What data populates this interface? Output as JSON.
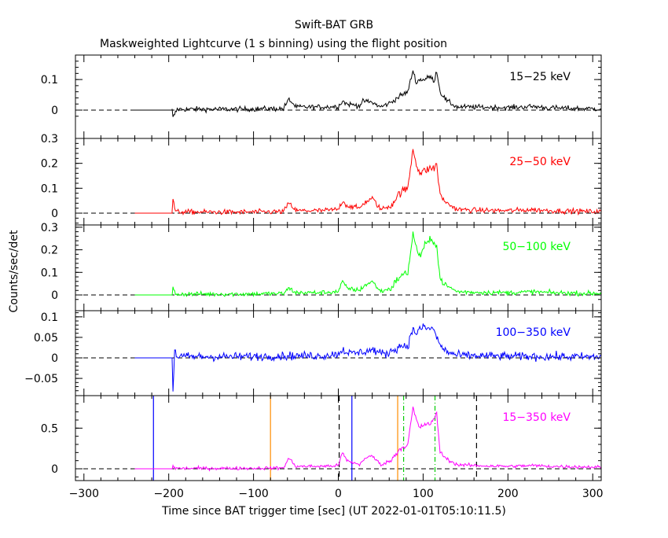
{
  "chart_data": {
    "type": "line",
    "title": "Swift-BAT GRB",
    "subtitle": "Maskweighted Lightcurve (1 s binning) using the flight position",
    "xlabel": "Time since BAT trigger time [sec] (UT 2022-01-01T05:10:11.5)",
    "ylabel": "Counts/sec/det",
    "xlim": [
      -310,
      310
    ],
    "xticks": [
      -300,
      -200,
      -100,
      0,
      100,
      200,
      300
    ],
    "grid": false,
    "panels": [
      {
        "name": "15−25 keV",
        "color": "#000000",
        "ylim": [
          -0.03,
          0.18
        ],
        "yticks": [
          0,
          0.1
        ],
        "ytick_labels": [
          "0",
          "0.1"
        ],
        "noise": 0.009,
        "spike_scale": 1.0,
        "bg_start": -240,
        "points": [
          [
            -196,
            0
          ],
          [
            -195,
            -0.025
          ],
          [
            -190,
            0.003
          ],
          [
            -120,
            0.003
          ],
          [
            -65,
            0.005
          ],
          [
            -58,
            0.035
          ],
          [
            -50,
            0.01
          ],
          [
            -20,
            0.01
          ],
          [
            0,
            0.012
          ],
          [
            5,
            0.03
          ],
          [
            10,
            0.02
          ],
          [
            25,
            0.015
          ],
          [
            30,
            0.03
          ],
          [
            40,
            0.025
          ],
          [
            50,
            0.01
          ],
          [
            62,
            0.025
          ],
          [
            72,
            0.045
          ],
          [
            82,
            0.06
          ],
          [
            88,
            0.13
          ],
          [
            92,
            0.09
          ],
          [
            96,
            0.1
          ],
          [
            102,
            0.1
          ],
          [
            108,
            0.11
          ],
          [
            113,
            0.095
          ],
          [
            116,
            0.13
          ],
          [
            120,
            0.06
          ],
          [
            128,
            0.03
          ],
          [
            140,
            0.01
          ],
          [
            160,
            0.01
          ],
          [
            200,
            0.008
          ],
          [
            230,
            0.012
          ],
          [
            250,
            0.007
          ],
          [
            310,
            0.004
          ]
        ]
      },
      {
        "name": "25−50 keV",
        "color": "#ff0000",
        "ylim": [
          -0.04,
          0.3
        ],
        "yticks": [
          0,
          0.1,
          0.2,
          0.3
        ],
        "ytick_labels": [
          "0",
          "0.1",
          "0.2",
          "0.3"
        ],
        "noise": 0.011,
        "spike_scale": 1.6,
        "bg_start": -240,
        "points": [
          [
            -196,
            0
          ],
          [
            -195,
            0.06
          ],
          [
            -192,
            0.005
          ],
          [
            -120,
            0.004
          ],
          [
            -65,
            0.006
          ],
          [
            -58,
            0.04
          ],
          [
            -50,
            0.01
          ],
          [
            -20,
            0.01
          ],
          [
            0,
            0.015
          ],
          [
            5,
            0.05
          ],
          [
            10,
            0.03
          ],
          [
            25,
            0.02
          ],
          [
            30,
            0.04
          ],
          [
            40,
            0.06
          ],
          [
            50,
            0.015
          ],
          [
            62,
            0.03
          ],
          [
            72,
            0.08
          ],
          [
            82,
            0.1
          ],
          [
            88,
            0.26
          ],
          [
            92,
            0.2
          ],
          [
            96,
            0.16
          ],
          [
            102,
            0.17
          ],
          [
            108,
            0.18
          ],
          [
            113,
            0.18
          ],
          [
            116,
            0.2
          ],
          [
            120,
            0.07
          ],
          [
            128,
            0.04
          ],
          [
            140,
            0.015
          ],
          [
            160,
            0.012
          ],
          [
            200,
            0.01
          ],
          [
            230,
            0.014
          ],
          [
            250,
            0.01
          ],
          [
            310,
            0.006
          ]
        ]
      },
      {
        "name": "50−100 keV",
        "color": "#00ff00",
        "ylim": [
          -0.03,
          0.31
        ],
        "yticks": [
          0,
          0.1,
          0.2,
          0.3
        ],
        "ytick_labels": [
          "0",
          "0.1",
          "0.2",
          "0.3"
        ],
        "noise": 0.011,
        "spike_scale": 1.6,
        "bg_start": -240,
        "points": [
          [
            -196,
            0
          ],
          [
            -195,
            0.03
          ],
          [
            -192,
            0.004
          ],
          [
            -120,
            0.004
          ],
          [
            -65,
            0.006
          ],
          [
            -58,
            0.03
          ],
          [
            -50,
            0.01
          ],
          [
            -20,
            0.01
          ],
          [
            0,
            0.015
          ],
          [
            5,
            0.06
          ],
          [
            10,
            0.03
          ],
          [
            25,
            0.02
          ],
          [
            30,
            0.04
          ],
          [
            40,
            0.06
          ],
          [
            50,
            0.015
          ],
          [
            62,
            0.03
          ],
          [
            72,
            0.08
          ],
          [
            82,
            0.1
          ],
          [
            88,
            0.27
          ],
          [
            92,
            0.21
          ],
          [
            96,
            0.17
          ],
          [
            102,
            0.22
          ],
          [
            108,
            0.24
          ],
          [
            113,
            0.24
          ],
          [
            116,
            0.22
          ],
          [
            120,
            0.07
          ],
          [
            128,
            0.04
          ],
          [
            140,
            0.015
          ],
          [
            160,
            0.012
          ],
          [
            200,
            0.01
          ],
          [
            230,
            0.014
          ],
          [
            250,
            0.01
          ],
          [
            310,
            0.006
          ]
        ]
      },
      {
        "name": "100−350 keV",
        "color": "#0000ff",
        "ylim": [
          -0.085,
          0.115
        ],
        "yticks": [
          -0.05,
          0,
          0.05,
          0.1
        ],
        "ytick_labels": [
          "−0.05",
          "0",
          "0.05",
          "0.1"
        ],
        "noise": 0.011,
        "spike_scale": 1.0,
        "bg_start": -240,
        "points": [
          [
            -196,
            0
          ],
          [
            -195,
            -0.08
          ],
          [
            -193,
            0.02
          ],
          [
            -190,
            0.003
          ],
          [
            -120,
            0.003
          ],
          [
            -60,
            0.005
          ],
          [
            -20,
            0.005
          ],
          [
            0,
            0.01
          ],
          [
            5,
            0.02
          ],
          [
            15,
            0.01
          ],
          [
            30,
            0.015
          ],
          [
            40,
            0.02
          ],
          [
            55,
            0.008
          ],
          [
            65,
            0.02
          ],
          [
            75,
            0.03
          ],
          [
            82,
            0.03
          ],
          [
            88,
            0.07
          ],
          [
            92,
            0.06
          ],
          [
            96,
            0.07
          ],
          [
            102,
            0.075
          ],
          [
            108,
            0.07
          ],
          [
            113,
            0.07
          ],
          [
            116,
            0.05
          ],
          [
            120,
            0.03
          ],
          [
            128,
            0.015
          ],
          [
            140,
            0.006
          ],
          [
            200,
            0.004
          ],
          [
            310,
            0.002
          ]
        ]
      },
      {
        "name": "15−350 keV",
        "color": "#ff00ff",
        "ylim": [
          -0.15,
          0.9
        ],
        "yticks": [
          0,
          0.5
        ],
        "ytick_labels": [
          "0",
          "0.5"
        ],
        "noise": 0.022,
        "spike_scale": 1.5,
        "bg_start": -240,
        "points": [
          [
            -196,
            0
          ],
          [
            -195,
            0.04
          ],
          [
            -192,
            0.005
          ],
          [
            -120,
            0.006
          ],
          [
            -65,
            0.01
          ],
          [
            -58,
            0.13
          ],
          [
            -50,
            0.03
          ],
          [
            -20,
            0.03
          ],
          [
            0,
            0.04
          ],
          [
            5,
            0.2
          ],
          [
            10,
            0.1
          ],
          [
            25,
            0.05
          ],
          [
            30,
            0.12
          ],
          [
            40,
            0.16
          ],
          [
            50,
            0.05
          ],
          [
            62,
            0.1
          ],
          [
            72,
            0.24
          ],
          [
            82,
            0.3
          ],
          [
            88,
            0.75
          ],
          [
            92,
            0.6
          ],
          [
            96,
            0.5
          ],
          [
            102,
            0.55
          ],
          [
            108,
            0.55
          ],
          [
            113,
            0.6
          ],
          [
            116,
            0.7
          ],
          [
            120,
            0.2
          ],
          [
            128,
            0.12
          ],
          [
            140,
            0.05
          ],
          [
            160,
            0.04
          ],
          [
            200,
            0.03
          ],
          [
            230,
            0.04
          ],
          [
            250,
            0.03
          ],
          [
            310,
            0.02
          ]
        ],
        "vlines": [
          {
            "x": -218,
            "color": "#0000ff",
            "dash": "solid"
          },
          {
            "x": -80,
            "color": "#ff8c00",
            "dash": "solid"
          },
          {
            "x": 1,
            "color": "#000000",
            "dash": "dashed"
          },
          {
            "x": 16,
            "color": "#0000ff",
            "dash": "solid"
          },
          {
            "x": 70,
            "color": "#ff8c00",
            "dash": "solid"
          },
          {
            "x": 77,
            "color": "#00cc00",
            "dash": "dashdot"
          },
          {
            "x": 114,
            "color": "#00cc00",
            "dash": "dashdot"
          },
          {
            "x": 163,
            "color": "#000000",
            "dash": "dashed"
          }
        ]
      }
    ]
  }
}
